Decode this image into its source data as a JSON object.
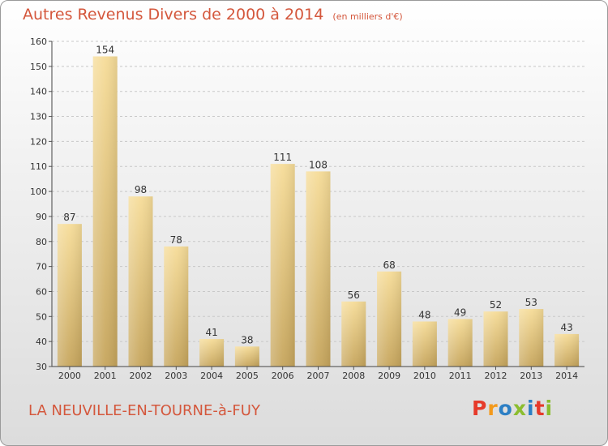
{
  "title": "Autres Revenus Divers de 2000 à 2014",
  "unit": "(en milliers d'€)",
  "commune": "LA NEUVILLE-EN-TOURNE-à-FUY",
  "logo": {
    "letters": [
      "P",
      "r",
      "o",
      "x",
      "i",
      "t",
      "i"
    ],
    "colors": [
      "#e63a2a",
      "#f39a1c",
      "#2c7fc4",
      "#8bbd2f",
      "#2c7fc4",
      "#e63a2a",
      "#8bbd2f"
    ]
  },
  "chart_data": {
    "type": "bar",
    "categories": [
      "2000",
      "2001",
      "2002",
      "2003",
      "2004",
      "2005",
      "2006",
      "2007",
      "2008",
      "2009",
      "2010",
      "2011",
      "2012",
      "2013",
      "2014"
    ],
    "values": [
      87,
      154,
      98,
      78,
      41,
      38,
      111,
      108,
      56,
      68,
      48,
      49,
      52,
      53,
      43
    ],
    "ylim": [
      30,
      160
    ],
    "yticks": [
      30,
      40,
      50,
      60,
      70,
      80,
      90,
      100,
      110,
      120,
      130,
      140,
      150,
      160
    ],
    "grid": true,
    "bar_color": "#e9c97a"
  }
}
